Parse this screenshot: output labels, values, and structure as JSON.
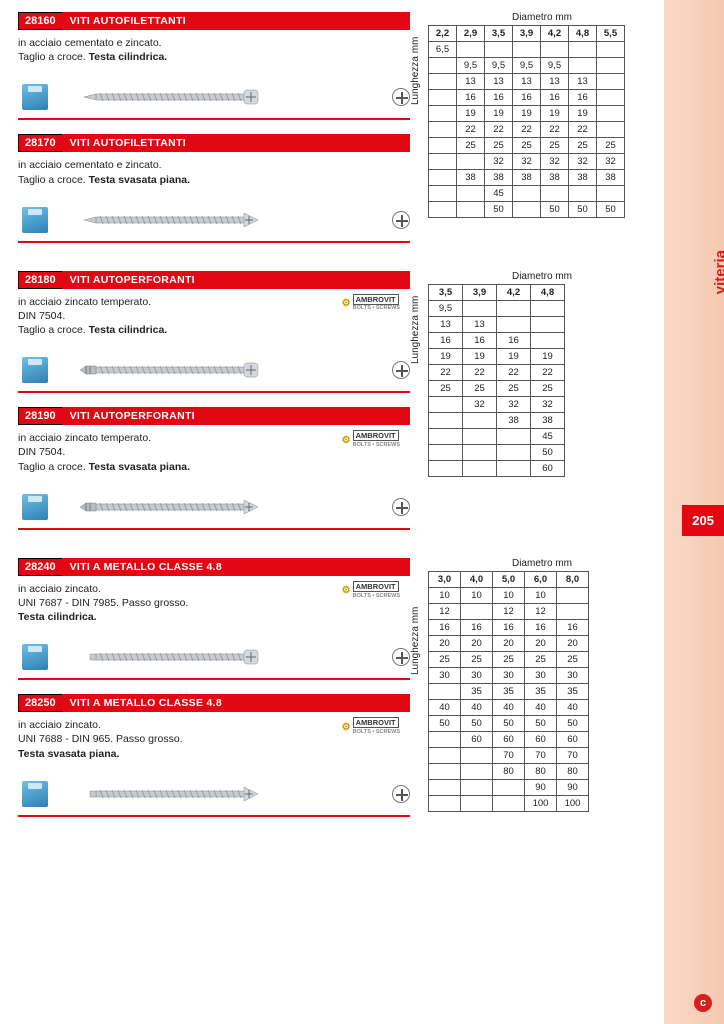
{
  "sidebar": {
    "category": "viteria",
    "page": "205"
  },
  "labels": {
    "diameter": "Diametro mm",
    "length": "Lunghezza mm"
  },
  "groups": [
    {
      "products": [
        {
          "code": "28160",
          "title": "VITI AUTOFILETTANTI",
          "desc_plain": "in acciaio cementato e zincato.\nTaglio a croce. ",
          "desc_bold": "Testa cilindrica.",
          "brand": false,
          "head": "pan",
          "tip": "sharp"
        },
        {
          "code": "28170",
          "title": "VITI AUTOFILETTANTI",
          "desc_plain": "in acciaio cementato e zincato.\nTaglio a croce. ",
          "desc_bold": "Testa svasata piana.",
          "brand": false,
          "head": "flat",
          "tip": "sharp"
        }
      ],
      "table": {
        "class": "t1",
        "cols": [
          "2,2",
          "2,9",
          "3,5",
          "3,9",
          "4,2",
          "4,8",
          "5,5"
        ],
        "rows": [
          [
            "6,5",
            "",
            "",
            "",
            "",
            "",
            ""
          ],
          [
            "",
            "9,5",
            "9,5",
            "9,5",
            "9,5",
            "",
            ""
          ],
          [
            "",
            "13",
            "13",
            "13",
            "13",
            "13",
            ""
          ],
          [
            "",
            "16",
            "16",
            "16",
            "16",
            "16",
            ""
          ],
          [
            "",
            "19",
            "19",
            "19",
            "19",
            "19",
            ""
          ],
          [
            "",
            "22",
            "22",
            "22",
            "22",
            "22",
            ""
          ],
          [
            "",
            "25",
            "25",
            "25",
            "25",
            "25",
            "25"
          ],
          [
            "",
            "",
            "32",
            "32",
            "32",
            "32",
            "32"
          ],
          [
            "",
            "38",
            "38",
            "38",
            "38",
            "38",
            "38"
          ],
          [
            "",
            "",
            "45",
            "",
            "",
            "",
            ""
          ],
          [
            "",
            "",
            "50",
            "",
            "50",
            "50",
            "50"
          ]
        ]
      }
    },
    {
      "products": [
        {
          "code": "28180",
          "title": "VITI AUTOPERFORANTI",
          "desc_plain": "in acciaio zincato temperato.\nDIN 7504.\nTaglio a croce. ",
          "desc_bold": "Testa cilindrica.",
          "brand": true,
          "head": "pan",
          "tip": "drill"
        },
        {
          "code": "28190",
          "title": "VITI AUTOPERFORANTI",
          "desc_plain": "in acciaio zincato temperato.\nDIN 7504.\nTaglio a croce. ",
          "desc_bold": "Testa svasata piana.",
          "brand": true,
          "head": "flat",
          "tip": "drill"
        }
      ],
      "table": {
        "class": "t2",
        "cols": [
          "3,5",
          "3,9",
          "4,2",
          "4,8"
        ],
        "rows": [
          [
            "9,5",
            "",
            "",
            ""
          ],
          [
            "13",
            "13",
            "",
            ""
          ],
          [
            "16",
            "16",
            "16",
            ""
          ],
          [
            "19",
            "19",
            "19",
            "19"
          ],
          [
            "22",
            "22",
            "22",
            "22"
          ],
          [
            "25",
            "25",
            "25",
            "25"
          ],
          [
            "",
            "32",
            "32",
            "32"
          ],
          [
            "",
            "",
            "38",
            "38"
          ],
          [
            "",
            "",
            "",
            "45"
          ],
          [
            "",
            "",
            "",
            "50"
          ],
          [
            "",
            "",
            "",
            "60"
          ]
        ]
      }
    },
    {
      "products": [
        {
          "code": "28240",
          "title": "VITI A METALLO CLASSE 4.8",
          "desc_plain": "in acciaio zincato.\nUNI 7687 - DIN 7985. Passo grosso.\n",
          "desc_bold": "Testa cilindrica.",
          "brand": true,
          "head": "pan",
          "tip": "machine"
        },
        {
          "code": "28250",
          "title": "VITI A METALLO CLASSE 4.8",
          "desc_plain": "in acciaio zincato.\nUNI 7688 - DIN 965. Passo grosso.\n",
          "desc_bold": "Testa svasata piana.",
          "brand": true,
          "head": "flat",
          "tip": "machine"
        }
      ],
      "table": {
        "class": "t3",
        "cols": [
          "3,0",
          "4,0",
          "5,0",
          "6,0",
          "8,0"
        ],
        "rows": [
          [
            "10",
            "10",
            "10",
            "10",
            ""
          ],
          [
            "12",
            "",
            "12",
            "12",
            ""
          ],
          [
            "16",
            "16",
            "16",
            "16",
            "16"
          ],
          [
            "20",
            "20",
            "20",
            "20",
            "20"
          ],
          [
            "25",
            "25",
            "25",
            "25",
            "25"
          ],
          [
            "30",
            "30",
            "30",
            "30",
            "30"
          ],
          [
            "",
            "35",
            "35",
            "35",
            "35"
          ],
          [
            "40",
            "40",
            "40",
            "40",
            "40"
          ],
          [
            "50",
            "50",
            "50",
            "50",
            "50"
          ],
          [
            "",
            "60",
            "60",
            "60",
            "60"
          ],
          [
            "",
            "",
            "70",
            "70",
            "70"
          ],
          [
            "",
            "",
            "80",
            "80",
            "80"
          ],
          [
            "",
            "",
            "",
            "90",
            "90"
          ],
          [
            "",
            "",
            "",
            "100",
            "100"
          ]
        ]
      }
    }
  ]
}
